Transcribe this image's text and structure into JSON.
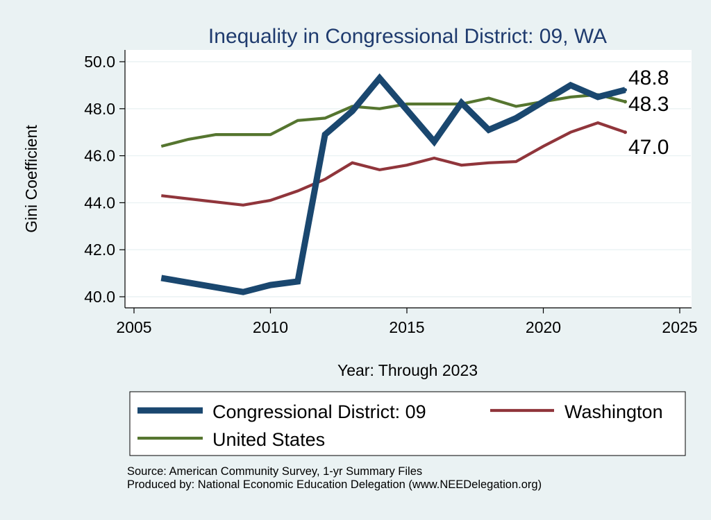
{
  "chart_data": {
    "type": "line",
    "title": "Inequality in Congressional District:  09, WA",
    "xlabel": "Year: Through 2023",
    "ylabel": "Gini Coefficient",
    "xlim": [
      2005,
      2025
    ],
    "ylim": [
      40.0,
      50.0
    ],
    "x_ticks": [
      2005,
      2010,
      2015,
      2020,
      2025
    ],
    "y_ticks": [
      40.0,
      42.0,
      44.0,
      46.0,
      48.0,
      50.0
    ],
    "y_tick_labels": [
      "40.0",
      "42.0",
      "44.0",
      "46.0",
      "48.0",
      "50.0"
    ],
    "grid": "horizontal",
    "legend_position": "bottom",
    "colors": {
      "background": "#eaf2f3",
      "plot_area": "#ffffff",
      "title": "#1f3b6e",
      "grid": "#eaf2f3"
    },
    "series": [
      {
        "name": "Congressional District:  09",
        "color": "#1a476f",
        "x": [
          2006,
          2009,
          2010,
          2011,
          2012,
          2013,
          2014,
          2016,
          2017,
          2018,
          2019,
          2021,
          2022,
          2023
        ],
        "values": [
          40.8,
          40.2,
          40.5,
          40.65,
          46.9,
          47.9,
          49.3,
          46.6,
          48.25,
          47.1,
          47.6,
          49.0,
          48.5,
          48.8
        ],
        "end_label": "48.8"
      },
      {
        "name": "Washington",
        "color": "#90353b",
        "x": [
          2006,
          2009,
          2010,
          2011,
          2012,
          2013,
          2014,
          2015,
          2016,
          2017,
          2018,
          2019,
          2020,
          2021,
          2022,
          2023
        ],
        "values": [
          44.3,
          43.9,
          44.1,
          44.5,
          45.0,
          45.7,
          45.4,
          45.6,
          45.9,
          45.6,
          45.7,
          45.75,
          46.4,
          47.0,
          47.4,
          47.0
        ],
        "end_label": "47.0"
      },
      {
        "name": "United States",
        "color": "#55752f",
        "x": [
          2006,
          2007,
          2008,
          2009,
          2010,
          2011,
          2012,
          2013,
          2014,
          2015,
          2016,
          2017,
          2018,
          2019,
          2020,
          2021,
          2022,
          2023
        ],
        "values": [
          46.4,
          46.7,
          46.9,
          46.9,
          46.9,
          47.5,
          47.6,
          48.1,
          48.0,
          48.2,
          48.2,
          48.2,
          48.45,
          48.1,
          48.3,
          48.5,
          48.6,
          48.3
        ],
        "end_label": "48.3"
      }
    ]
  },
  "footer": {
    "source": "Source: American Community Survey, 1-yr Summary Files",
    "produced": "Produced by: National Economic Education Delegation (www.NEEDelegation.org)"
  }
}
